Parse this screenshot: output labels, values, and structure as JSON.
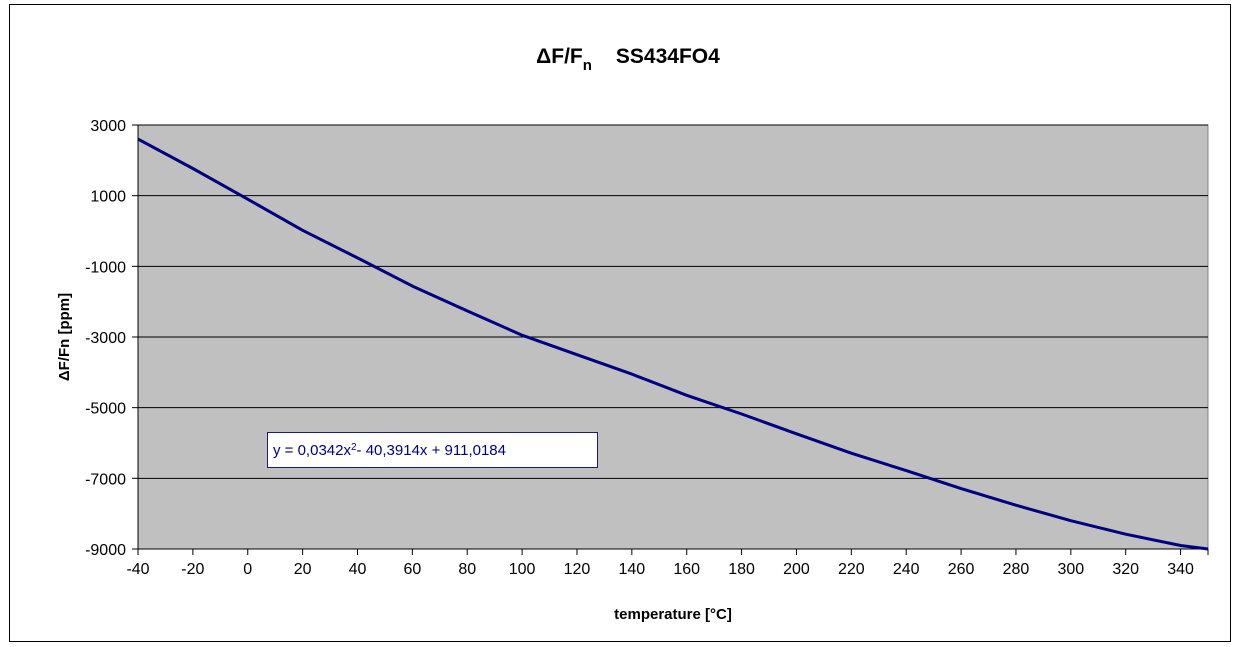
{
  "chart_data": {
    "type": "line",
    "title": {
      "delta": "Δ",
      "main": "F/F",
      "sub": "n",
      "model": "SS434FO4"
    },
    "xlabel": "temperature [°C]",
    "ylabel": "ΔF/Fn [ppm]",
    "xlim": [
      -40,
      350
    ],
    "ylim": [
      -9000,
      3000
    ],
    "xticks": [
      -40,
      -20,
      0,
      20,
      40,
      60,
      80,
      100,
      120,
      140,
      160,
      180,
      200,
      220,
      240,
      260,
      280,
      300,
      320,
      340
    ],
    "yticks": [
      3000,
      1000,
      -1000,
      -3000,
      -5000,
      -7000,
      -9000
    ],
    "grid": "horizontal",
    "legend": "none",
    "series": [
      {
        "line_color": "#000080",
        "x": [
          -40,
          -20,
          0,
          20,
          40,
          60,
          80,
          100,
          120,
          140,
          160,
          180,
          200,
          220,
          240,
          260,
          280,
          300,
          320,
          340,
          350
        ],
        "y": [
          2600,
          1770,
          900,
          20,
          -760,
          -1560,
          -2260,
          -2950,
          -3500,
          -4050,
          -4650,
          -5180,
          -5740,
          -6290,
          -6780,
          -7290,
          -7760,
          -8200,
          -8580,
          -8900,
          -9000
        ]
      }
    ],
    "trendline": {
      "prefix": "y = 0,0342x",
      "exponent": "2",
      "suffix": " - 40,3914x + 911,0184"
    },
    "colors": {
      "plot_background": "#c0c0c0",
      "gridline": "#000000",
      "equation_text": "#000080"
    }
  }
}
